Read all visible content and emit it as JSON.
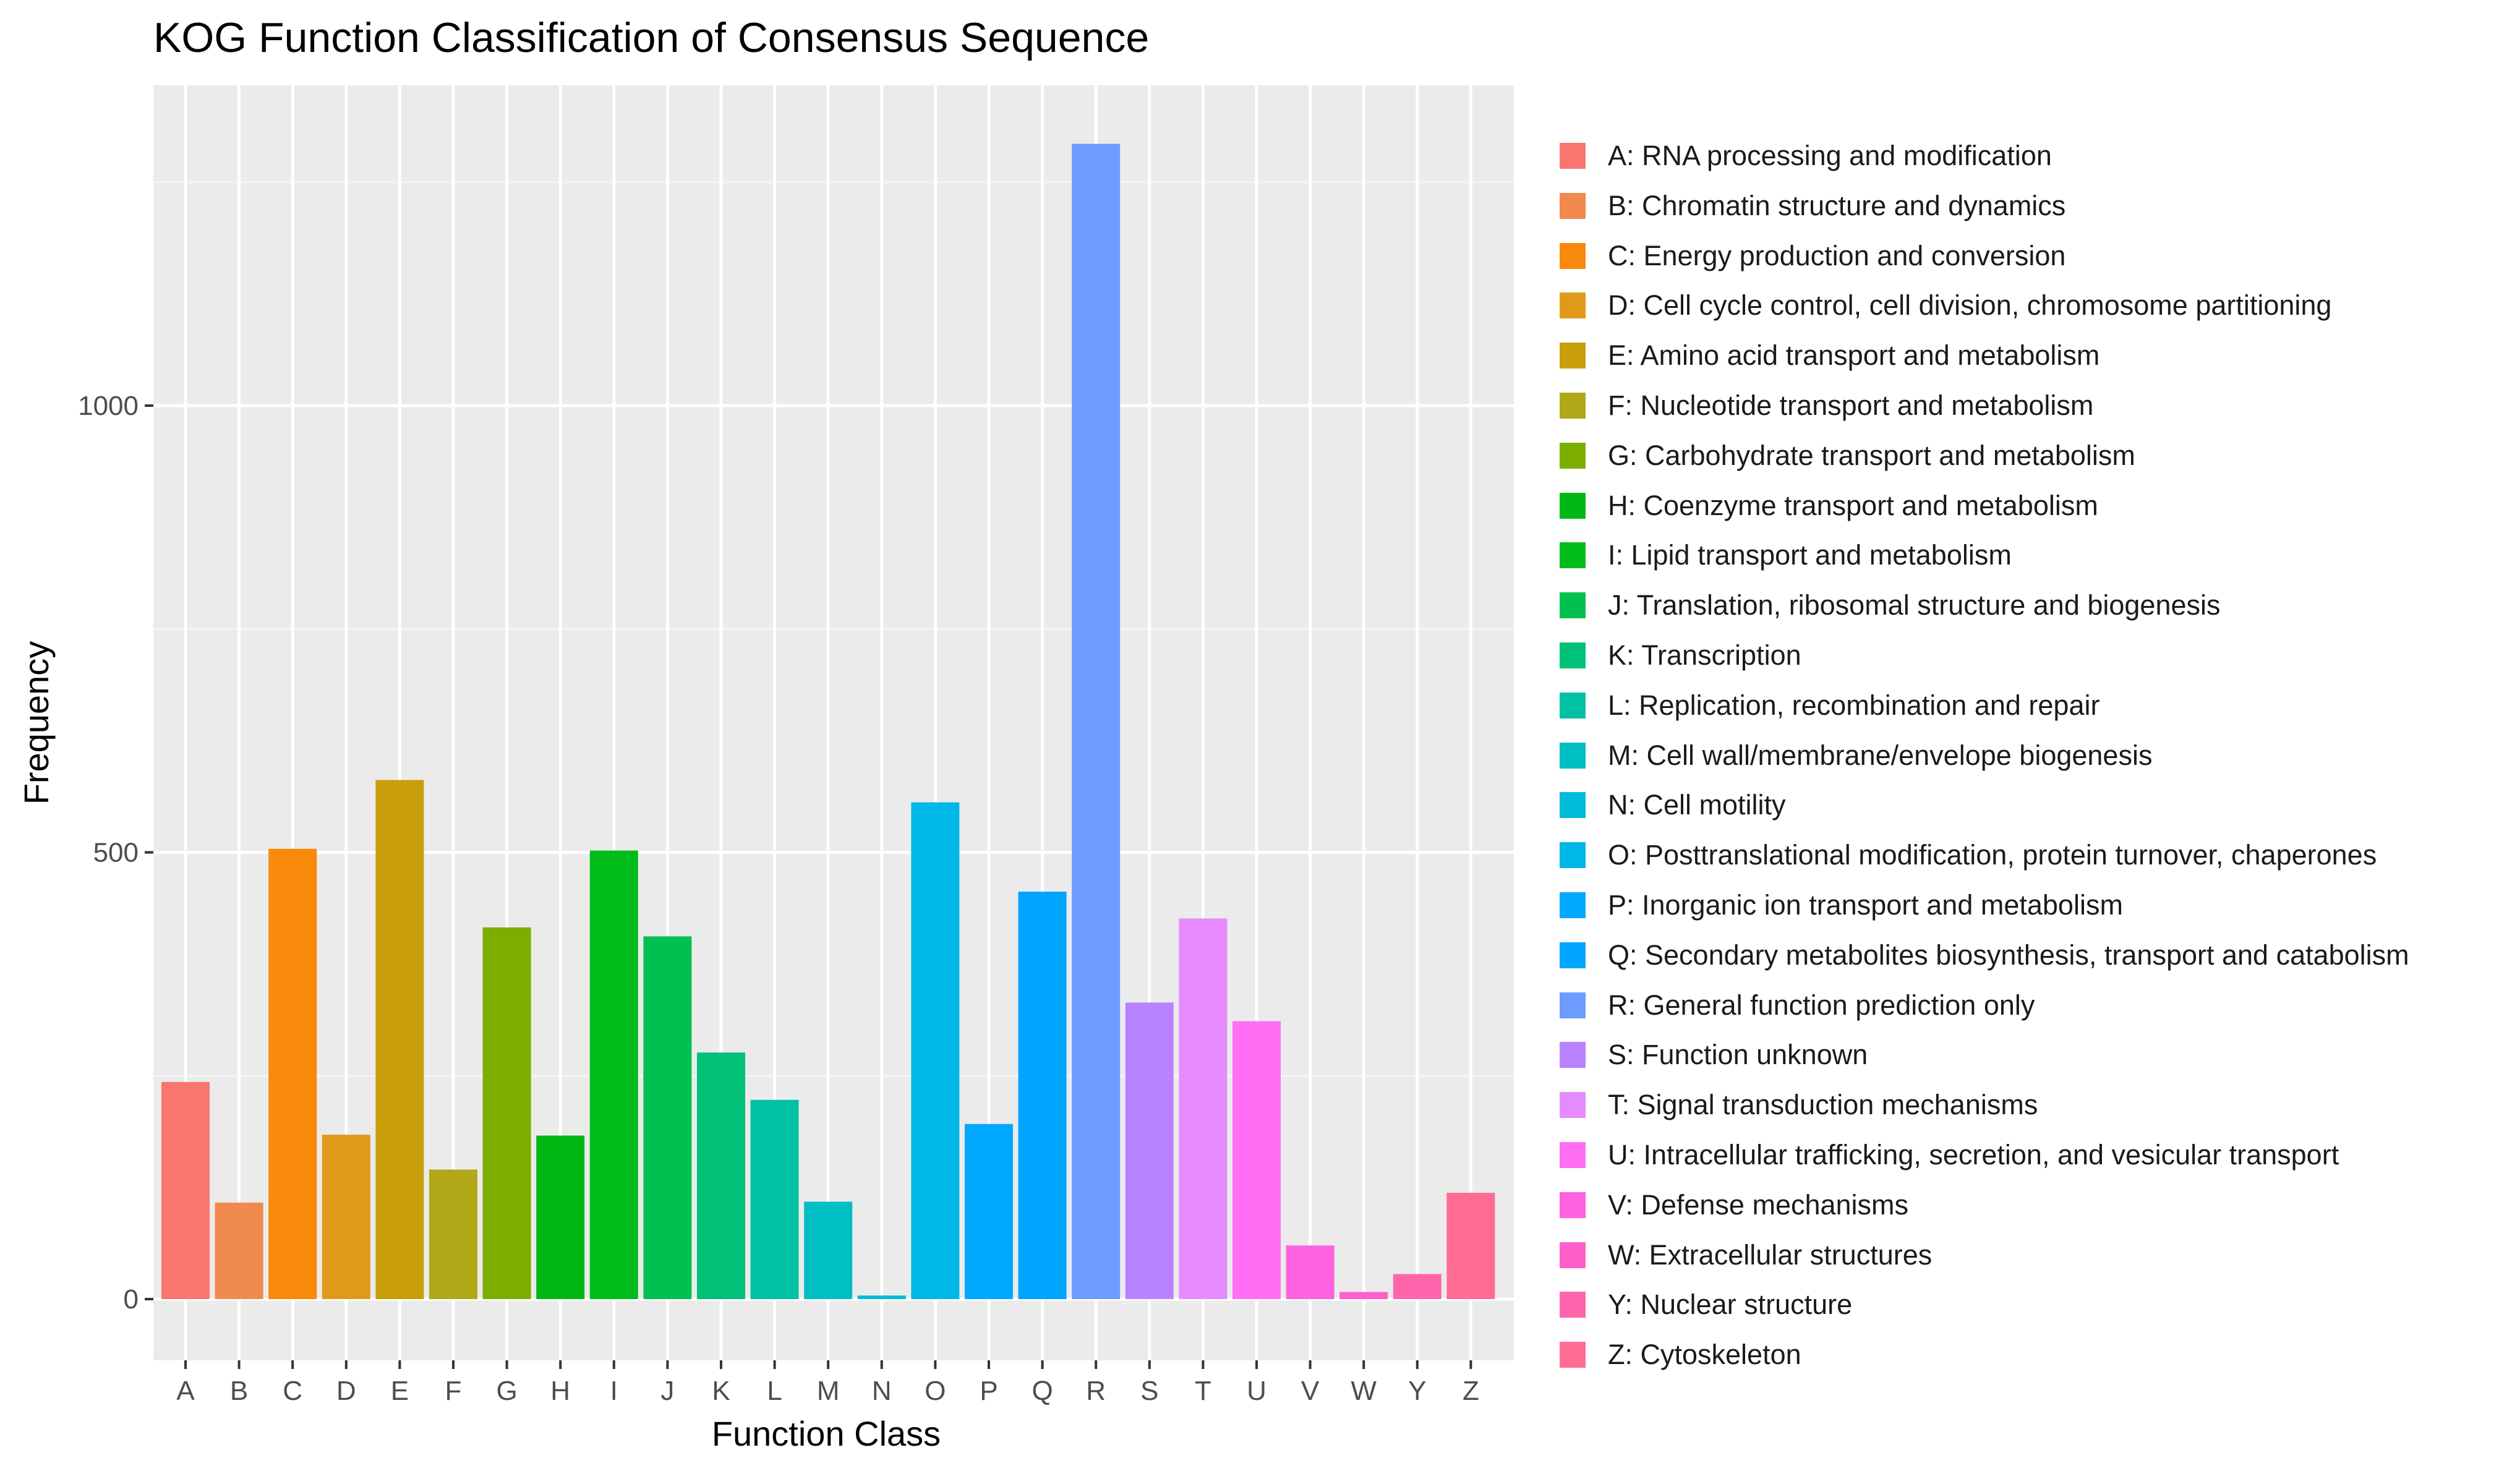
{
  "chart_data": {
    "type": "bar",
    "title": "KOG Function Classification of Consensus Sequence",
    "xlabel": "Function Class",
    "ylabel": "Frequency",
    "ylim": [
      0,
      1300
    ],
    "yticks": [
      0,
      500,
      1000
    ],
    "grid": true,
    "legend_position": "right",
    "categories": [
      "A",
      "B",
      "C",
      "D",
      "E",
      "F",
      "G",
      "H",
      "I",
      "J",
      "K",
      "L",
      "M",
      "N",
      "O",
      "P",
      "Q",
      "R",
      "S",
      "T",
      "U",
      "V",
      "W",
      "Y",
      "Z"
    ],
    "values": [
      243,
      108,
      504,
      184,
      581,
      145,
      416,
      183,
      502,
      406,
      276,
      223,
      109,
      4,
      556,
      196,
      456,
      1293,
      332,
      426,
      311,
      60,
      8,
      28,
      119
    ],
    "colors": [
      "#F8766D",
      "#F08A4D",
      "#F8890B",
      "#E09A1B",
      "#C99E0B",
      "#B0A816",
      "#7CAE00",
      "#00B813",
      "#00BC1B",
      "#00C04F",
      "#00C177",
      "#00C1A3",
      "#00BFC4",
      "#00BCD8",
      "#00B8E7",
      "#00A9FF",
      "#00A5FF",
      "#6E9BFF",
      "#B983FF",
      "#E58BFF",
      "#FF6EF3",
      "#FF61E0",
      "#FF5FCA",
      "#FF65AC",
      "#FF6C93"
    ],
    "legend": [
      "A: RNA processing and modification",
      "B: Chromatin structure and dynamics",
      "C: Energy production and conversion",
      "D: Cell cycle control, cell division, chromosome partitioning",
      "E: Amino acid transport and metabolism",
      "F: Nucleotide transport and metabolism",
      "G: Carbohydrate transport and metabolism",
      "H: Coenzyme transport and metabolism",
      "I: Lipid transport and metabolism",
      "J: Translation, ribosomal structure and biogenesis",
      "K: Transcription",
      "L: Replication, recombination and repair",
      "M: Cell wall/membrane/envelope biogenesis",
      "N: Cell motility",
      "O: Posttranslational modification, protein turnover, chaperones",
      "P: Inorganic ion transport and metabolism",
      "Q: Secondary metabolites biosynthesis, transport and catabolism",
      "R: General function prediction only",
      "S: Function unknown",
      "T: Signal transduction mechanisms",
      "U: Intracellular trafficking, secretion, and vesicular transport",
      "V: Defense mechanisms",
      "W: Extracellular structures",
      "Y: Nuclear structure",
      "Z: Cytoskeleton"
    ],
    "colors_meta": {
      "panel_background": "#EBEBEB",
      "grid_major": "#FFFFFF"
    }
  }
}
